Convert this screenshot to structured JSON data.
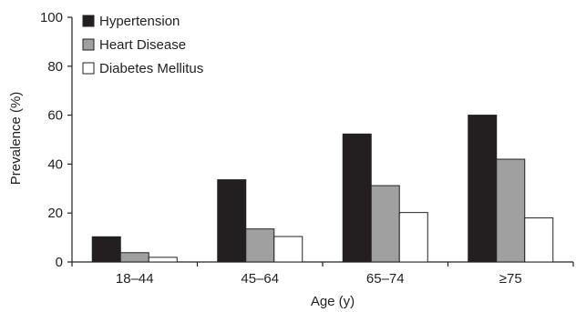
{
  "chart_data": {
    "type": "bar",
    "title": "",
    "xlabel": "Age (y)",
    "ylabel": "Prevalence (%)",
    "ylim": [
      0,
      100
    ],
    "yticks": [
      "0",
      "20",
      "40",
      "60",
      "80",
      "100"
    ],
    "categories": [
      "18–44",
      "45–64",
      "65–74",
      "≥75"
    ],
    "series": [
      {
        "name": "Hypertension",
        "values": [
          10.3,
          33.6,
          52.3,
          60.0
        ],
        "color": "#231f20"
      },
      {
        "name": "Heart Disease",
        "values": [
          3.8,
          13.5,
          31.2,
          42.0
        ],
        "color": "#a0a0a0"
      },
      {
        "name": "Diabetes Mellitus",
        "values": [
          1.9,
          10.4,
          20.2,
          18.0
        ],
        "color": "#ffffff"
      }
    ],
    "grid": false,
    "legend": "top-left"
  }
}
